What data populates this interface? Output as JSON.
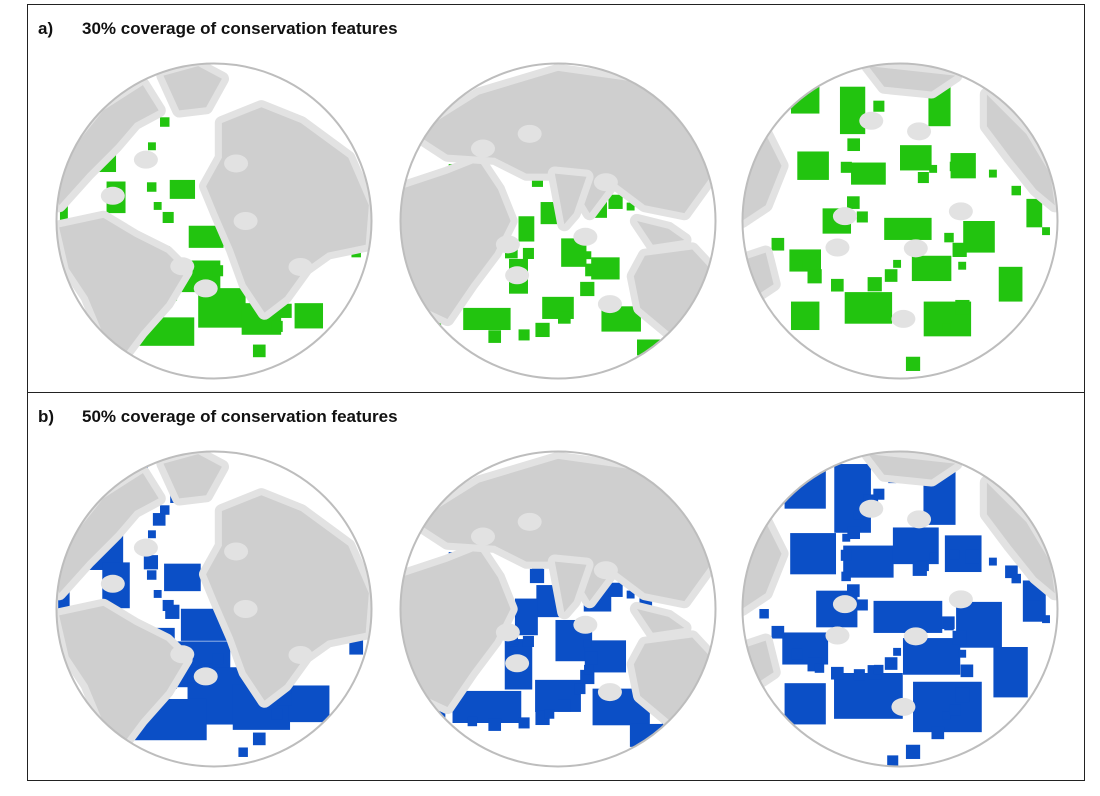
{
  "figure": {
    "panels": [
      {
        "letter": "a)",
        "title": "30% coverage of conservation features",
        "selection_color": "#22c40f",
        "globe_views": [
          "atlantic",
          "indian",
          "pacific"
        ]
      },
      {
        "letter": "b)",
        "title": "50% coverage of conservation features",
        "selection_color": "#0b4fc6",
        "globe_views": [
          "atlantic",
          "indian",
          "pacific"
        ]
      }
    ],
    "colors": {
      "land": "#cfcfcf",
      "shelf": "#e2e2e2",
      "ocean": "#ffffff",
      "globe_rim": "#bdbdbd"
    }
  }
}
